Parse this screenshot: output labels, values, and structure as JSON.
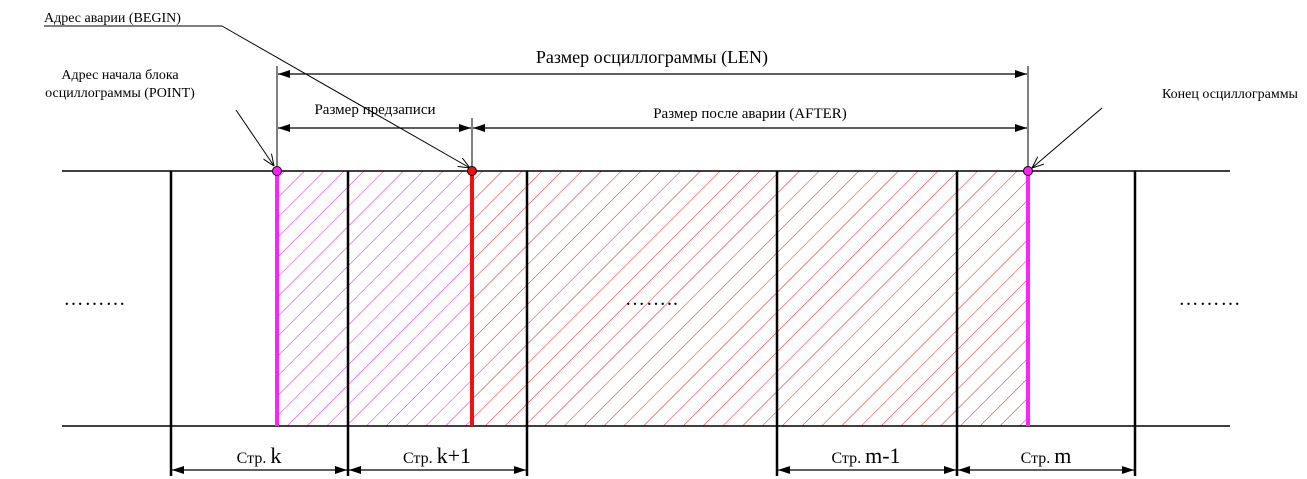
{
  "labels": {
    "begin_address": "Адрес аварии (BEGIN)",
    "block_start_line1": "Адрес начала блока",
    "block_start_line2": "осциллограммы (POINT)",
    "len": "Размер осциллограммы (LEN)",
    "prerecord": "Размер предзаписи",
    "after": "Размер после аварии (AFTER)",
    "end": "Конец осциллограммы"
  },
  "dots": {
    "left": "………",
    "middle": "……..",
    "right": "………"
  },
  "pages": [
    {
      "word": "Стр.",
      "var": "k"
    },
    {
      "word": "Стр.",
      "var": "k+1"
    },
    {
      "word": "Стр.",
      "var": "m-1"
    },
    {
      "word": "Стр.",
      "var": "m"
    }
  ],
  "colors": {
    "magenta": "#ff22ff",
    "red": "#ee1111",
    "black": "#000000",
    "hatch_magenta": "#e020e0",
    "hatch_red": "#e82020"
  }
}
